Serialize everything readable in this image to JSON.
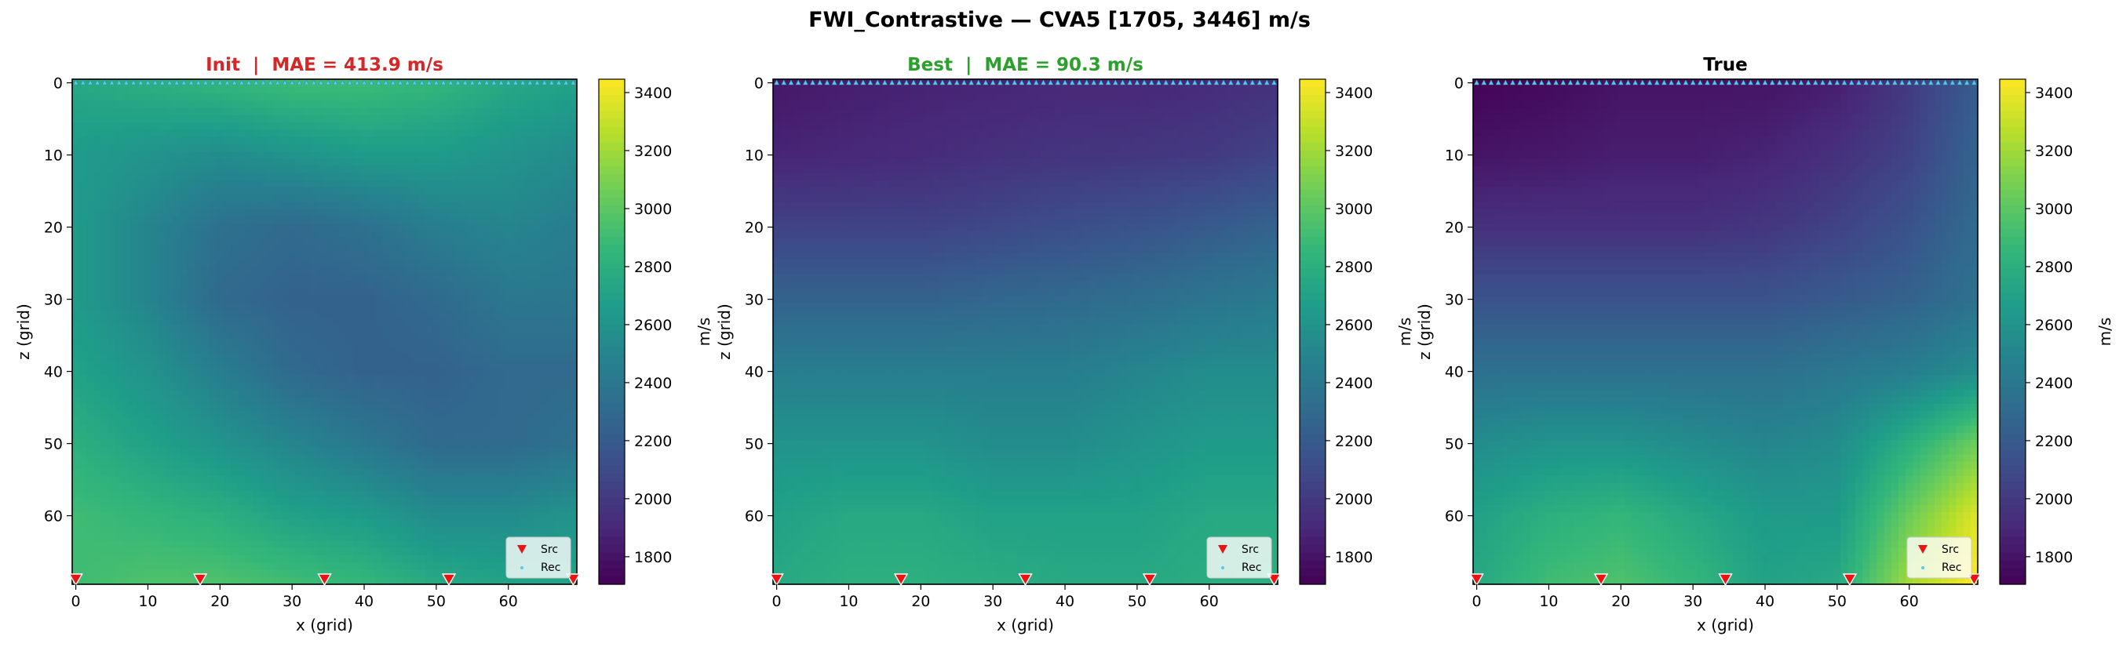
{
  "figure": {
    "suptitle": "FWI_Contrastive — CVA5 [1705, 3446] m/s"
  },
  "chart_data": [
    {
      "type": "heatmap",
      "title": "Init  |  MAE = 413.9 m/s",
      "title_color": "#d62728",
      "xlabel": "x (grid)",
      "ylabel": "z (grid)",
      "xlim": [
        0,
        69
      ],
      "ylim": [
        69,
        0
      ],
      "xticks": [
        0,
        10,
        20,
        30,
        40,
        50,
        60
      ],
      "yticks": [
        0,
        10,
        20,
        30,
        40,
        50,
        60
      ],
      "colormap": "viridis",
      "vmin": 1705,
      "vmax": 3446,
      "colorbar_label": "m/s",
      "colorbar_ticks": [
        1800,
        2000,
        2200,
        2400,
        2600,
        2800,
        3000,
        3200,
        3400
      ],
      "field": {
        "x": [
          0,
          10,
          20,
          30,
          40,
          50,
          60,
          69
        ],
        "z": [
          0,
          10,
          20,
          30,
          40,
          50,
          60,
          69
        ],
        "values": [
          [
            2750,
            2800,
            2850,
            2900,
            2900,
            2850,
            2750,
            2700
          ],
          [
            2650,
            2600,
            2550,
            2600,
            2650,
            2650,
            2600,
            2550
          ],
          [
            2650,
            2500,
            2350,
            2300,
            2350,
            2450,
            2500,
            2450
          ],
          [
            2650,
            2500,
            2300,
            2250,
            2250,
            2300,
            2400,
            2400
          ],
          [
            2700,
            2600,
            2450,
            2300,
            2250,
            2250,
            2300,
            2300
          ],
          [
            2800,
            2700,
            2600,
            2500,
            2400,
            2300,
            2300,
            2350
          ],
          [
            2900,
            2850,
            2800,
            2700,
            2650,
            2550,
            2550,
            2600
          ],
          [
            2900,
            2950,
            2950,
            2900,
            2850,
            2750,
            2700,
            2700
          ]
        ]
      },
      "sources": {
        "x": [
          0,
          17.25,
          34.5,
          51.75,
          69
        ],
        "z": 69.5
      },
      "receiver_count": 70,
      "legend": {
        "location": "lower-right",
        "entries": [
          "Src",
          "Rec"
        ]
      }
    },
    {
      "type": "heatmap",
      "title": "Best  |  MAE = 90.3 m/s",
      "title_color": "#2ca02c",
      "xlabel": "x (grid)",
      "ylabel": "z (grid)",
      "xlim": [
        0,
        69
      ],
      "ylim": [
        69,
        0
      ],
      "xticks": [
        0,
        10,
        20,
        30,
        40,
        50,
        60
      ],
      "yticks": [
        0,
        10,
        20,
        30,
        40,
        50,
        60
      ],
      "colormap": "viridis",
      "vmin": 1705,
      "vmax": 3446,
      "colorbar_label": "m/s",
      "colorbar_ticks": [
        1800,
        2000,
        2200,
        2400,
        2600,
        2800,
        3000,
        3200,
        3400
      ],
      "field": {
        "x": [
          0,
          10,
          20,
          30,
          40,
          50,
          60,
          69
        ],
        "z": [
          0,
          10,
          20,
          30,
          40,
          50,
          60,
          69
        ],
        "values": [
          [
            1820,
            1850,
            1870,
            1880,
            1900,
            1900,
            1920,
            1950
          ],
          [
            1880,
            1900,
            1920,
            1950,
            1970,
            1980,
            2000,
            2050
          ],
          [
            2050,
            2050,
            2050,
            2080,
            2120,
            2150,
            2200,
            2250
          ],
          [
            2250,
            2250,
            2250,
            2280,
            2300,
            2330,
            2380,
            2420
          ],
          [
            2450,
            2450,
            2450,
            2450,
            2450,
            2500,
            2550,
            2550
          ],
          [
            2600,
            2600,
            2600,
            2550,
            2550,
            2600,
            2650,
            2650
          ],
          [
            2700,
            2750,
            2750,
            2700,
            2700,
            2700,
            2750,
            2750
          ],
          [
            2750,
            2800,
            2800,
            2780,
            2750,
            2750,
            2780,
            2800
          ]
        ]
      },
      "sources": {
        "x": [
          0,
          17.25,
          34.5,
          51.75,
          69
        ],
        "z": 69.5
      },
      "receiver_count": 70,
      "legend": {
        "location": "lower-right",
        "entries": [
          "Src",
          "Rec"
        ]
      }
    },
    {
      "type": "heatmap",
      "title": "True",
      "title_color": "#000000",
      "xlabel": "x (grid)",
      "ylabel": "z (grid)",
      "xlim": [
        0,
        69
      ],
      "ylim": [
        69,
        0
      ],
      "xticks": [
        0,
        10,
        20,
        30,
        40,
        50,
        60
      ],
      "yticks": [
        0,
        10,
        20,
        30,
        40,
        50,
        60
      ],
      "colormap": "viridis",
      "vmin": 1705,
      "vmax": 3446,
      "colorbar_label": "m/s",
      "colorbar_ticks": [
        1800,
        2000,
        2200,
        2400,
        2600,
        2800,
        3000,
        3200,
        3400
      ],
      "field": {
        "x": [
          0,
          10,
          20,
          30,
          40,
          50,
          60,
          69
        ],
        "z": [
          0,
          10,
          20,
          30,
          40,
          50,
          60,
          69
        ],
        "values": [
          [
            1720,
            1750,
            1800,
            1800,
            1800,
            1850,
            2000,
            2200
          ],
          [
            1800,
            1820,
            1850,
            1850,
            1880,
            1950,
            2050,
            2250
          ],
          [
            1950,
            1950,
            1950,
            1950,
            1980,
            2050,
            2150,
            2300
          ],
          [
            2150,
            2150,
            2150,
            2150,
            2150,
            2200,
            2250,
            2350
          ],
          [
            2350,
            2350,
            2350,
            2350,
            2350,
            2400,
            2450,
            2550
          ],
          [
            2550,
            2600,
            2600,
            2550,
            2500,
            2550,
            2800,
            3050
          ],
          [
            2700,
            2800,
            2850,
            2750,
            2650,
            2650,
            3050,
            3350
          ],
          [
            2750,
            2900,
            2950,
            2850,
            2700,
            2750,
            3200,
            3446
          ]
        ]
      },
      "sources": {
        "x": [
          0,
          17.25,
          34.5,
          51.75,
          69
        ],
        "z": 69.5
      },
      "receiver_count": 70,
      "legend": {
        "location": "lower-right",
        "entries": [
          "Src",
          "Rec"
        ]
      }
    }
  ]
}
